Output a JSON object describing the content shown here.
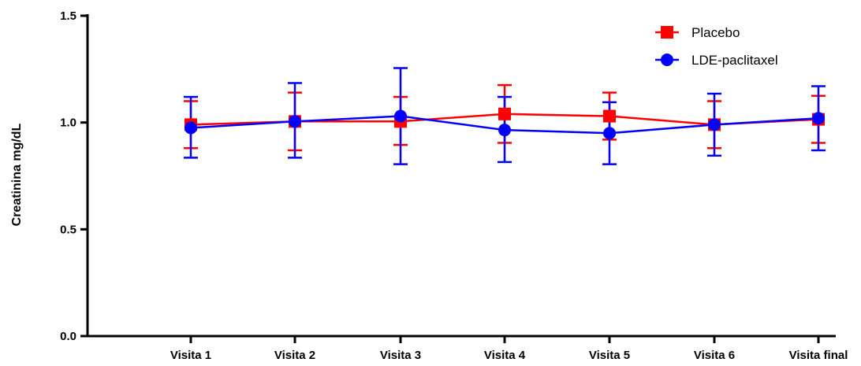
{
  "chart_data": {
    "type": "line",
    "categories": [
      "Visita 1",
      "Visita 2",
      "Visita 3",
      "Visita 4",
      "Visita 5",
      "Visita 6",
      "Visita final"
    ],
    "ylabel": "Creatinina mg/dL",
    "xlabel": "",
    "ylim": [
      0.0,
      1.5
    ],
    "yticks": [
      "0.0",
      "0.5",
      "1.0",
      "1.5"
    ],
    "ytick_values": [
      0.0,
      0.5,
      1.0,
      1.5
    ],
    "grid": false,
    "legend_position": "top-right",
    "series": [
      {
        "name": "Placebo",
        "color": "#ff0000",
        "marker": "square",
        "values": [
          0.99,
          1.005,
          1.005,
          1.04,
          1.03,
          0.99,
          1.015
        ],
        "err_low": [
          0.88,
          0.87,
          0.895,
          0.905,
          0.92,
          0.88,
          0.905
        ],
        "err_high": [
          1.1,
          1.14,
          1.12,
          1.175,
          1.14,
          1.1,
          1.125
        ]
      },
      {
        "name": "LDE-paclitaxel",
        "color": "#0000ff",
        "marker": "circle",
        "values": [
          0.975,
          1.005,
          1.03,
          0.965,
          0.95,
          0.99,
          1.02
        ],
        "err_low": [
          0.835,
          0.835,
          0.805,
          0.815,
          0.805,
          0.845,
          0.87
        ],
        "err_high": [
          1.12,
          1.185,
          1.255,
          1.12,
          1.095,
          1.135,
          1.17
        ]
      }
    ]
  }
}
